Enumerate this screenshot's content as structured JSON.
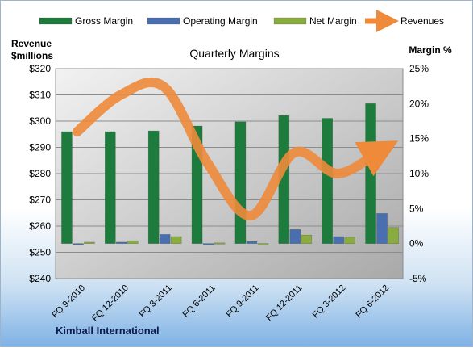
{
  "footer_text": "Kimball International",
  "chart_data": {
    "type": "bar",
    "title": "Quarterly Margins",
    "left_axis_label_line1": "Revenue",
    "left_axis_label_line2": "$millions",
    "right_axis_label": "Margin %",
    "categories": [
      "FQ 9-2010",
      "FQ 12-2010",
      "FQ 3-2011",
      "FQ 6-2011",
      "FQ 9-2011",
      "FQ 12-2011",
      "FQ 3-2012",
      "FQ 6-2012"
    ],
    "left_axis": {
      "min": 240,
      "max": 320,
      "step": 10,
      "tick_labels": [
        "$240",
        "$250",
        "$260",
        "$270",
        "$280",
        "$290",
        "$300",
        "$310",
        "$320"
      ]
    },
    "right_axis": {
      "min": -5,
      "max": 25,
      "step": 5,
      "tick_labels": [
        "-5%",
        "0%",
        "5%",
        "10%",
        "15%",
        "20%",
        "25%"
      ]
    },
    "grid": true,
    "legend_position": "top",
    "series": [
      {
        "name": "Gross Margin",
        "type": "bar",
        "axis": "right",
        "color": "#1e7b3e",
        "values": [
          16.0,
          16.0,
          16.1,
          16.8,
          17.4,
          18.3,
          17.9,
          20.0
        ]
      },
      {
        "name": "Operating Margin",
        "type": "bar",
        "axis": "right",
        "color": "#4a6fb0",
        "values": [
          -0.1,
          0.2,
          1.3,
          -0.2,
          0.3,
          2.0,
          1.0,
          4.3
        ]
      },
      {
        "name": "Net Margin",
        "type": "bar",
        "axis": "right",
        "color": "#8aab3e",
        "values": [
          0.2,
          0.4,
          1.0,
          0.1,
          -0.2,
          1.2,
          0.9,
          2.3
        ]
      },
      {
        "name": "Revenues",
        "type": "line",
        "axis": "left",
        "color": "#ee8a3a",
        "values": [
          296,
          310,
          313,
          284,
          264,
          288,
          280,
          289
        ]
      }
    ]
  }
}
